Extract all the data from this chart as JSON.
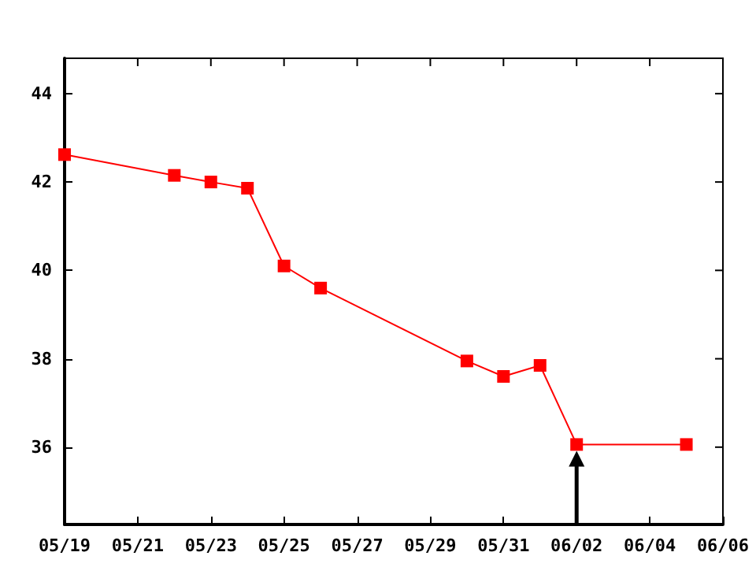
{
  "chart_data": {
    "type": "line",
    "x": [
      "--05-19",
      "--05-22",
      "--05-23",
      "--05-24",
      "--05-25",
      "--05-26",
      "--05-30",
      "--05-31",
      "--06-01",
      "--06-02",
      "--06-05"
    ],
    "series": [
      {
        "color": "#ff0000",
        "values": [
          42.62,
          42.15,
          42.0,
          41.86,
          40.1,
          39.6,
          37.95,
          37.6,
          37.85,
          36.06,
          36.06
        ]
      }
    ],
    "xlim": [
      "--05-19",
      "--06-06"
    ],
    "xticks": [
      {
        "value": "--05-19",
        "label": "05/19"
      },
      {
        "value": "--05-21",
        "label": "05/21"
      },
      {
        "value": "--05-23",
        "label": "05/23"
      },
      {
        "value": "--05-25",
        "label": "05/25"
      },
      {
        "value": "--05-27",
        "label": "05/27"
      },
      {
        "value": "--05-29",
        "label": "05/29"
      },
      {
        "value": "--05-31",
        "label": "05/31"
      },
      {
        "value": "--06-02",
        "label": "06/02"
      },
      {
        "value": "--06-04",
        "label": "06/04"
      },
      {
        "value": "--06-06",
        "label": "06/06"
      }
    ],
    "ylim": [
      34.25,
      44.8
    ],
    "yticks": [
      36,
      38,
      40,
      42,
      44
    ],
    "ref_lines": [
      {
        "axis": "x",
        "value": "--06-02",
        "color": "#000000"
      }
    ],
    "grid": false,
    "marker": "square",
    "line_style": "solid"
  }
}
